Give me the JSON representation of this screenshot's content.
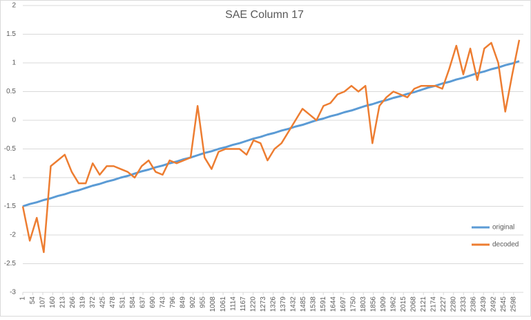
{
  "chart_data": {
    "type": "line",
    "title": "SAE Column 17",
    "x": [
      1,
      38,
      75,
      112,
      149,
      186,
      223,
      260,
      297,
      334,
      371,
      408,
      445,
      482,
      519,
      556,
      593,
      630,
      667,
      704,
      741,
      778,
      815,
      852,
      889,
      926,
      963,
      1000,
      1037,
      1074,
      1111,
      1148,
      1185,
      1222,
      1259,
      1296,
      1333,
      1370,
      1407,
      1444,
      1481,
      1518,
      1555,
      1592,
      1629,
      1666,
      1703,
      1740,
      1777,
      1814,
      1851,
      1888,
      1925,
      1962,
      1999,
      2036,
      2073,
      2110,
      2147,
      2184,
      2221,
      2258,
      2295,
      2332,
      2369,
      2406,
      2443,
      2480,
      2517,
      2554,
      2591,
      2628
    ],
    "series": [
      {
        "name": "original",
        "color": "#5b9bd5",
        "values": [
          -1.5,
          -1.46,
          -1.43,
          -1.39,
          -1.36,
          -1.32,
          -1.29,
          -1.25,
          -1.22,
          -1.18,
          -1.14,
          -1.11,
          -1.07,
          -1.04,
          -1.0,
          -0.97,
          -0.93,
          -0.89,
          -0.86,
          -0.82,
          -0.79,
          -0.75,
          -0.72,
          -0.68,
          -0.65,
          -0.61,
          -0.57,
          -0.54,
          -0.5,
          -0.47,
          -0.43,
          -0.4,
          -0.36,
          -0.32,
          -0.29,
          -0.25,
          -0.22,
          -0.18,
          -0.15,
          -0.11,
          -0.08,
          -0.04,
          0.0,
          0.03,
          0.07,
          0.1,
          0.14,
          0.17,
          0.21,
          0.25,
          0.28,
          0.32,
          0.35,
          0.39,
          0.42,
          0.46,
          0.49,
          0.53,
          0.57,
          0.6,
          0.64,
          0.67,
          0.71,
          0.74,
          0.78,
          0.82,
          0.85,
          0.89,
          0.92,
          0.96,
          0.99,
          1.03
        ]
      },
      {
        "name": "decoded",
        "color": "#ed7d31",
        "values": [
          -1.5,
          -2.1,
          -1.7,
          -2.3,
          -0.8,
          -0.7,
          -0.6,
          -0.9,
          -1.1,
          -1.1,
          -0.75,
          -0.95,
          -0.8,
          -0.8,
          -0.85,
          -0.9,
          -1.0,
          -0.8,
          -0.7,
          -0.9,
          -0.95,
          -0.7,
          -0.75,
          -0.7,
          -0.65,
          0.25,
          -0.65,
          -0.85,
          -0.55,
          -0.5,
          -0.5,
          -0.5,
          -0.6,
          -0.35,
          -0.4,
          -0.7,
          -0.5,
          -0.4,
          -0.2,
          0.0,
          0.2,
          0.1,
          0.0,
          0.25,
          0.3,
          0.45,
          0.5,
          0.6,
          0.5,
          0.6,
          -0.4,
          0.25,
          0.4,
          0.5,
          0.45,
          0.4,
          0.55,
          0.6,
          0.6,
          0.6,
          0.55,
          0.9,
          1.3,
          0.8,
          1.25,
          0.7,
          1.25,
          1.35,
          1.0,
          0.15,
          0.8,
          1.4
        ]
      }
    ],
    "xlim": [
      1,
      2650
    ],
    "xticks": [
      1,
      54,
      107,
      160,
      213,
      266,
      319,
      372,
      425,
      478,
      531,
      584,
      637,
      690,
      743,
      796,
      849,
      902,
      955,
      1008,
      1061,
      1114,
      1167,
      1220,
      1273,
      1326,
      1379,
      1432,
      1485,
      1538,
      1591,
      1644,
      1697,
      1750,
      1803,
      1856,
      1909,
      1962,
      2015,
      2068,
      2121,
      2174,
      2227,
      2280,
      2333,
      2386,
      2439,
      2492,
      2545,
      2598
    ],
    "ylim": [
      -3,
      2
    ],
    "yticks": [
      -3,
      -2.5,
      -2,
      -1.5,
      -1,
      -0.5,
      0,
      0.5,
      1,
      1.5,
      2
    ],
    "grid": true,
    "legend": "right"
  }
}
